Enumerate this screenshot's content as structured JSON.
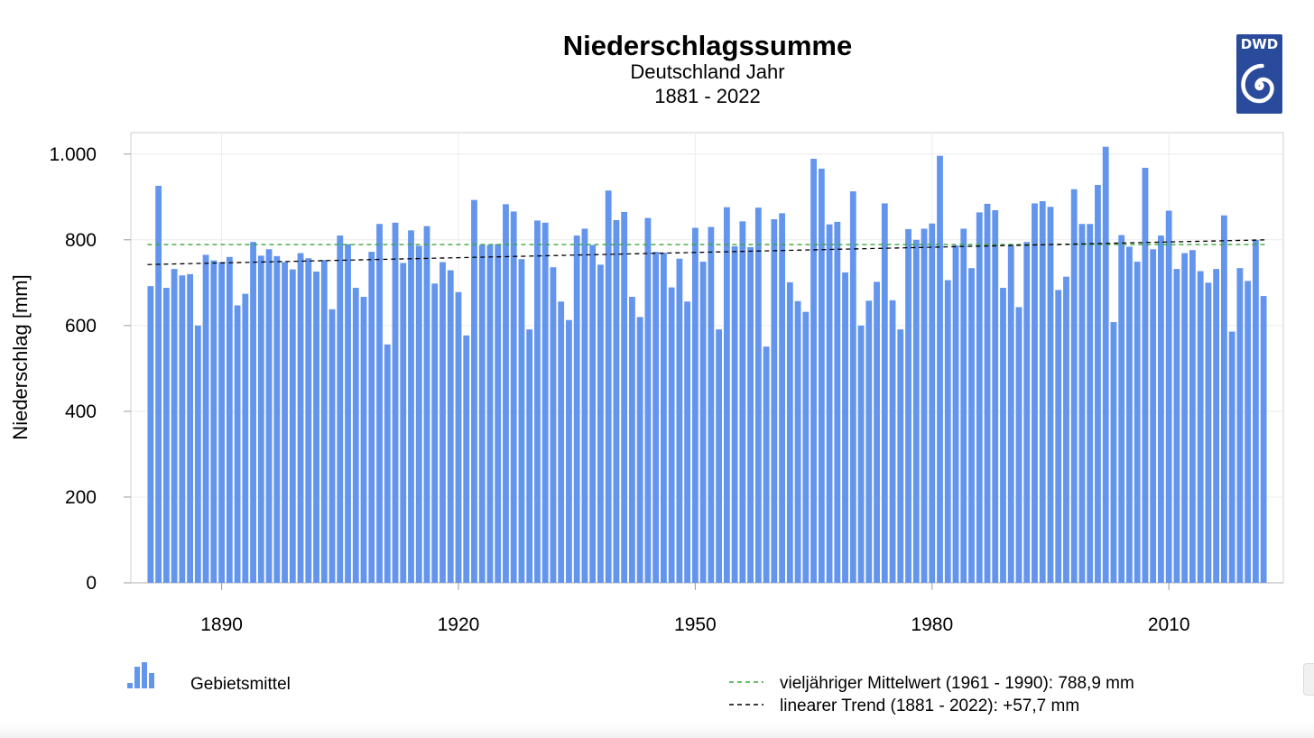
{
  "chart_data": {
    "type": "bar",
    "title": "Niederschlagssumme",
    "subtitle_region": "Deutschland Jahr",
    "subtitle_period": "1881 - 2022",
    "ylabel": "Niederschlag [mm]",
    "xlabel": "",
    "ylim": [
      0,
      1050
    ],
    "xlim": [
      1878.5,
      2024.5
    ],
    "grid": true,
    "y_ticks": [
      0,
      200,
      400,
      600,
      800,
      1000
    ],
    "y_tick_labels": [
      "0",
      "200",
      "400",
      "600",
      "800",
      "1.000"
    ],
    "x_ticks": [
      1890,
      1920,
      1950,
      1980,
      2010
    ],
    "x_tick_labels": [
      "1890",
      "1920",
      "1950",
      "1980",
      "2010"
    ],
    "x_start": 1881,
    "values": [
      692,
      926,
      688,
      732,
      717,
      720,
      600,
      765,
      752,
      748,
      760,
      647,
      674,
      795,
      763,
      778,
      762,
      748,
      731,
      769,
      757,
      726,
      753,
      638,
      810,
      790,
      688,
      667,
      772,
      837,
      556,
      840,
      746,
      822,
      786,
      832,
      698,
      748,
      729,
      678,
      577,
      893,
      788,
      788,
      790,
      883,
      866,
      755,
      591,
      845,
      840,
      736,
      656,
      613,
      810,
      826,
      788,
      742,
      915,
      846,
      865,
      667,
      620,
      851,
      772,
      770,
      689,
      756,
      656,
      828,
      749,
      830,
      591,
      876,
      785,
      843,
      783,
      875,
      551,
      848,
      862,
      701,
      657,
      632,
      989,
      966,
      836,
      842,
      724,
      913,
      600,
      658,
      702,
      885,
      659,
      591,
      825,
      800,
      826,
      838,
      996,
      706,
      787,
      826,
      734,
      864,
      884,
      869,
      688,
      788,
      643,
      795,
      885,
      890,
      877,
      683,
      714,
      918,
      837,
      837,
      928,
      1017,
      608,
      811,
      784,
      749,
      968,
      778,
      810,
      868,
      732,
      769,
      776,
      727,
      700,
      732,
      857,
      586,
      734,
      704,
      800,
      669
    ],
    "bar_color": "#6495ed",
    "reference_mean": {
      "value": 788.9,
      "color": "#3aa53a",
      "label": "vieljähriger Mittelwert (1961 - 1990): 788,9 mm"
    },
    "trend": {
      "start_value": 742.3,
      "end_value": 800.0,
      "color": "#000000",
      "label": "linearer Trend (1881 - 2022): +57,7 mm"
    },
    "legend": {
      "bar_label": "Gebietsmittel"
    }
  },
  "logo": {
    "text": "DWD",
    "color": "#2a4b9b"
  }
}
